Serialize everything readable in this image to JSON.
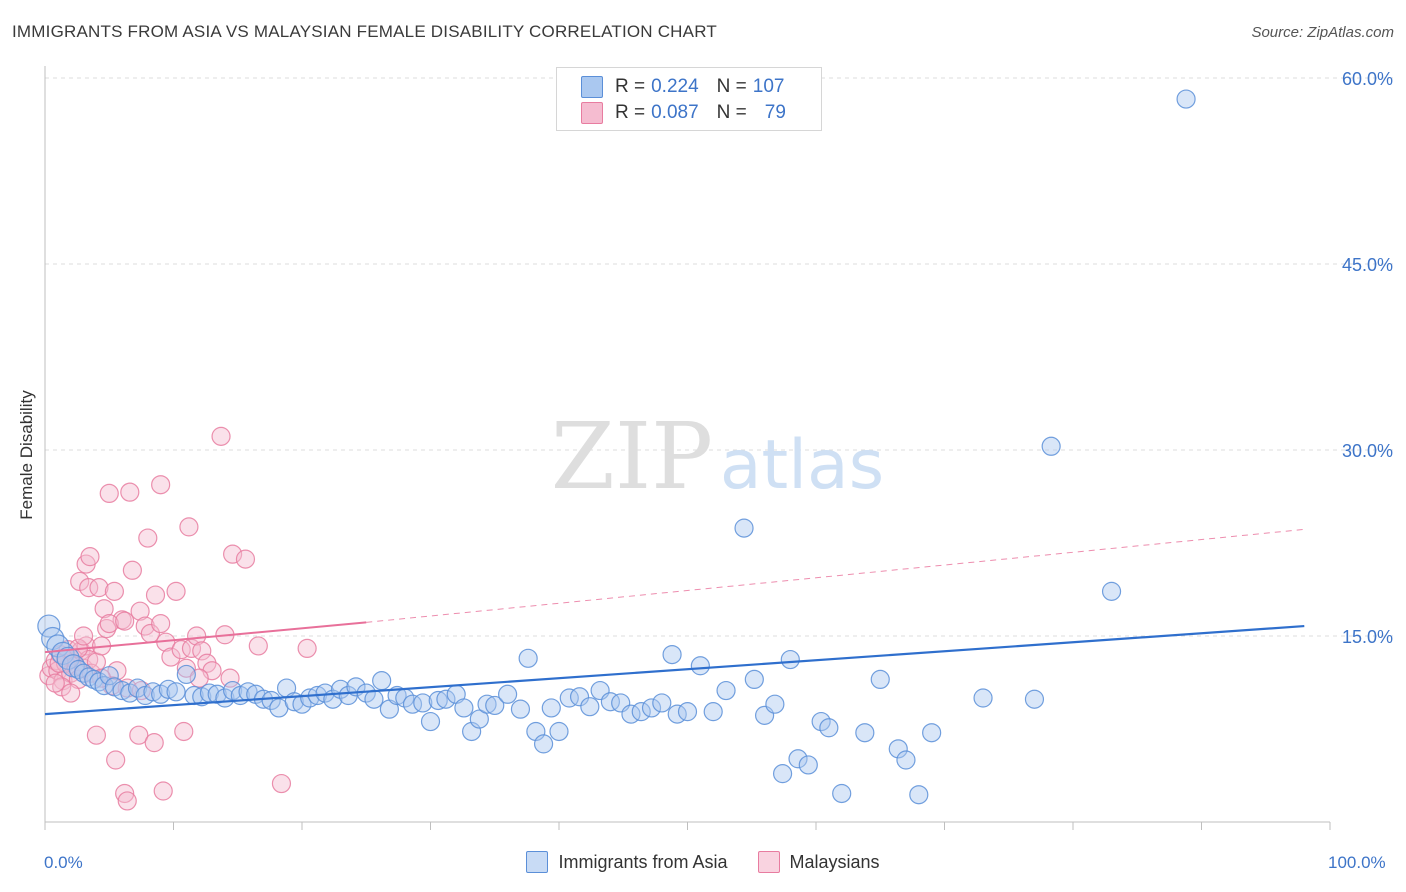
{
  "title": "IMMIGRANTS FROM ASIA VS MALAYSIAN FEMALE DISABILITY CORRELATION CHART",
  "source": "Source: ZipAtlas.com",
  "watermark": {
    "zip": "ZIP",
    "atlas": "atlas"
  },
  "legend": [
    {
      "r_label": "R =",
      "r_value": "0.224",
      "n_label": "N =",
      "n_value": "107"
    },
    {
      "r_label": "R =",
      "r_value": "0.087",
      "n_label": "N =",
      "n_value": "79"
    }
  ],
  "colors": {
    "blue_fill": "#aac8f0",
    "blue_stroke": "#5b8fd8",
    "blue_line": "#2f6fcd",
    "pink_fill": "#f5bcd0",
    "pink_stroke": "#e87ca0",
    "pink_line": "#e8709a",
    "axis_text": "#3d74c8",
    "grid": "#dcdcdc"
  },
  "chart_data": {
    "type": "scatter",
    "title": "IMMIGRANTS FROM ASIA VS MALAYSIAN FEMALE DISABILITY CORRELATION CHART",
    "xlabel": "",
    "ylabel": "Female Disability",
    "xlim": [
      0,
      100
    ],
    "ylim": [
      0,
      60
    ],
    "x_tick_labels": [
      "0.0%",
      "100.0%"
    ],
    "y_ticks": [
      15,
      30,
      45,
      60
    ],
    "y_tick_labels": [
      "15.0%",
      "30.0%",
      "45.0%",
      "60.0%"
    ],
    "grid": true,
    "legend_position": "top-center",
    "series": [
      {
        "name": "Immigrants from Asia",
        "color": "#5b8fd8",
        "R": 0.224,
        "N": 107,
        "trend": {
          "x": [
            0,
            98
          ],
          "y": [
            8.7,
            15.8
          ],
          "style": "solid"
        },
        "points": [
          [
            0.3,
            15.8
          ],
          [
            0.6,
            14.8
          ],
          [
            1.0,
            14.2
          ],
          [
            1.4,
            13.6
          ],
          [
            1.8,
            13.2
          ],
          [
            2.2,
            12.6
          ],
          [
            2.6,
            12.3
          ],
          [
            3.0,
            12.0
          ],
          [
            3.4,
            11.7
          ],
          [
            3.8,
            11.5
          ],
          [
            4.2,
            11.3
          ],
          [
            4.6,
            11.0
          ],
          [
            5.0,
            11.8
          ],
          [
            5.4,
            10.9
          ],
          [
            6.0,
            10.6
          ],
          [
            6.6,
            10.4
          ],
          [
            7.2,
            10.8
          ],
          [
            7.8,
            10.2
          ],
          [
            8.4,
            10.5
          ],
          [
            9.0,
            10.3
          ],
          [
            9.6,
            10.7
          ],
          [
            10.2,
            10.5
          ],
          [
            11.0,
            11.9
          ],
          [
            11.6,
            10.2
          ],
          [
            12.2,
            10.1
          ],
          [
            12.8,
            10.4
          ],
          [
            13.4,
            10.3
          ],
          [
            14.0,
            10.0
          ],
          [
            14.6,
            10.6
          ],
          [
            15.2,
            10.2
          ],
          [
            15.8,
            10.5
          ],
          [
            16.4,
            10.3
          ],
          [
            17.0,
            9.9
          ],
          [
            17.6,
            9.8
          ],
          [
            18.2,
            9.2
          ],
          [
            18.8,
            10.8
          ],
          [
            19.4,
            9.7
          ],
          [
            20.0,
            9.5
          ],
          [
            20.6,
            10.0
          ],
          [
            21.2,
            10.2
          ],
          [
            21.8,
            10.4
          ],
          [
            22.4,
            9.9
          ],
          [
            23.0,
            10.7
          ],
          [
            23.6,
            10.2
          ],
          [
            24.2,
            10.9
          ],
          [
            25.0,
            10.4
          ],
          [
            25.6,
            9.9
          ],
          [
            26.2,
            11.4
          ],
          [
            26.8,
            9.1
          ],
          [
            27.4,
            10.2
          ],
          [
            28.0,
            10.0
          ],
          [
            28.6,
            9.5
          ],
          [
            29.4,
            9.6
          ],
          [
            30.0,
            8.1
          ],
          [
            30.6,
            9.8
          ],
          [
            31.2,
            9.9
          ],
          [
            32.0,
            10.3
          ],
          [
            32.6,
            9.2
          ],
          [
            33.2,
            7.3
          ],
          [
            33.8,
            8.3
          ],
          [
            34.4,
            9.5
          ],
          [
            35.0,
            9.4
          ],
          [
            36.0,
            10.3
          ],
          [
            37.0,
            9.1
          ],
          [
            37.6,
            13.2
          ],
          [
            38.2,
            7.3
          ],
          [
            38.8,
            6.3
          ],
          [
            39.4,
            9.2
          ],
          [
            40.0,
            7.3
          ],
          [
            40.8,
            10.0
          ],
          [
            41.6,
            10.1
          ],
          [
            42.4,
            9.3
          ],
          [
            43.2,
            10.6
          ],
          [
            44.0,
            9.7
          ],
          [
            44.8,
            9.6
          ],
          [
            45.6,
            8.7
          ],
          [
            46.4,
            8.9
          ],
          [
            47.2,
            9.2
          ],
          [
            48.0,
            9.6
          ],
          [
            48.8,
            13.5
          ],
          [
            49.2,
            8.7
          ],
          [
            50.0,
            8.9
          ],
          [
            51.0,
            12.6
          ],
          [
            52.0,
            8.9
          ],
          [
            53.0,
            10.6
          ],
          [
            54.4,
            23.7
          ],
          [
            55.2,
            11.5
          ],
          [
            56.0,
            8.6
          ],
          [
            56.8,
            9.5
          ],
          [
            57.4,
            3.9
          ],
          [
            58.0,
            13.1
          ],
          [
            58.6,
            5.1
          ],
          [
            59.4,
            4.6
          ],
          [
            60.4,
            8.1
          ],
          [
            61.0,
            7.6
          ],
          [
            62.0,
            2.3
          ],
          [
            63.8,
            7.2
          ],
          [
            65.0,
            11.5
          ],
          [
            66.4,
            5.9
          ],
          [
            67.0,
            5.0
          ],
          [
            68.0,
            2.2
          ],
          [
            69.0,
            7.2
          ],
          [
            73.0,
            10.0
          ],
          [
            77.0,
            9.9
          ],
          [
            83.0,
            18.6
          ],
          [
            78.3,
            30.3
          ],
          [
            88.8,
            58.3
          ]
        ]
      },
      {
        "name": "Malaysians",
        "color": "#e87ca0",
        "R": 0.087,
        "N": 79,
        "trend": {
          "x": [
            0,
            25
          ],
          "y": [
            13.7,
            16.1
          ],
          "style": "solid",
          "extension": {
            "x": [
              25,
              98
            ],
            "y": [
              16.1,
              23.6
            ],
            "style": "dashed"
          }
        },
        "points": [
          [
            0.3,
            11.8
          ],
          [
            0.5,
            12.4
          ],
          [
            0.8,
            13.0
          ],
          [
            1.0,
            12.2
          ],
          [
            1.2,
            13.5
          ],
          [
            1.4,
            11.4
          ],
          [
            1.6,
            12.8
          ],
          [
            1.8,
            13.9
          ],
          [
            2.0,
            12.0
          ],
          [
            2.2,
            13.2
          ],
          [
            2.4,
            12.6
          ],
          [
            2.6,
            11.5
          ],
          [
            2.8,
            13.8
          ],
          [
            3.0,
            12.4
          ],
          [
            3.2,
            14.2
          ],
          [
            3.4,
            13.1
          ],
          [
            3.6,
            12.0
          ],
          [
            1.3,
            10.9
          ],
          [
            2.0,
            10.4
          ],
          [
            4.0,
            12.9
          ],
          [
            4.4,
            14.2
          ],
          [
            4.8,
            15.6
          ],
          [
            5.2,
            11.0
          ],
          [
            5.6,
            12.2
          ],
          [
            6.0,
            16.3
          ],
          [
            6.4,
            10.8
          ],
          [
            2.7,
            19.4
          ],
          [
            3.2,
            20.8
          ],
          [
            3.5,
            21.4
          ],
          [
            3.4,
            18.9
          ],
          [
            4.2,
            18.9
          ],
          [
            4.6,
            17.2
          ],
          [
            5.0,
            16.0
          ],
          [
            5.4,
            18.6
          ],
          [
            6.2,
            16.2
          ],
          [
            6.8,
            20.3
          ],
          [
            7.4,
            17.0
          ],
          [
            7.8,
            15.8
          ],
          [
            8.2,
            15.2
          ],
          [
            8.6,
            18.3
          ],
          [
            9.0,
            16.0
          ],
          [
            9.4,
            14.5
          ],
          [
            9.8,
            13.3
          ],
          [
            10.2,
            18.6
          ],
          [
            10.6,
            13.9
          ],
          [
            11.0,
            12.4
          ],
          [
            11.4,
            14.0
          ],
          [
            11.8,
            15.0
          ],
          [
            12.2,
            13.8
          ],
          [
            12.6,
            12.8
          ],
          [
            13.0,
            12.2
          ],
          [
            14.0,
            15.1
          ],
          [
            14.4,
            11.6
          ],
          [
            5.0,
            26.5
          ],
          [
            6.6,
            26.6
          ],
          [
            8.0,
            22.9
          ],
          [
            9.0,
            27.2
          ],
          [
            11.2,
            23.8
          ],
          [
            13.7,
            31.1
          ],
          [
            14.6,
            21.6
          ],
          [
            15.6,
            21.2
          ],
          [
            16.6,
            14.2
          ],
          [
            20.4,
            14.0
          ],
          [
            4.0,
            7.0
          ],
          [
            5.5,
            5.0
          ],
          [
            7.3,
            7.0
          ],
          [
            8.5,
            6.4
          ],
          [
            10.8,
            7.3
          ],
          [
            6.2,
            2.3
          ],
          [
            6.4,
            1.7
          ],
          [
            9.2,
            2.5
          ],
          [
            18.4,
            3.1
          ],
          [
            12.0,
            11.6
          ],
          [
            7.5,
            10.6
          ],
          [
            2.6,
            14.0
          ],
          [
            3.0,
            15.0
          ],
          [
            4.4,
            11.6
          ],
          [
            1.1,
            12.8
          ],
          [
            0.8,
            11.2
          ]
        ]
      }
    ]
  }
}
